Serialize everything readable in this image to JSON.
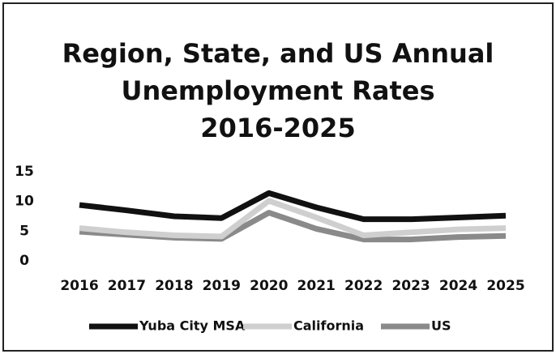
{
  "chart_data": {
    "type": "line",
    "title": [
      "Region, State, and US Annual",
      "Unemployment Rates",
      "2016-2025"
    ],
    "categories": [
      "2016",
      "2017",
      "2018",
      "2019",
      "2020",
      "2021",
      "2022",
      "2023",
      "2024",
      "2025"
    ],
    "series": [
      {
        "name": "Yuba City MSA",
        "color": "#111111",
        "values": [
          9.4,
          8.5,
          7.5,
          7.2,
          11.4,
          9.0,
          7.0,
          7.0,
          7.3,
          7.6
        ]
      },
      {
        "name": "California",
        "color": "#cfcfcf",
        "values": [
          5.5,
          4.8,
          4.3,
          4.1,
          10.1,
          7.3,
          4.3,
          4.8,
          5.3,
          5.5
        ]
      },
      {
        "name": "US",
        "color": "#8a8a8a",
        "values": [
          4.9,
          4.4,
          3.9,
          3.7,
          8.1,
          5.4,
          3.6,
          3.6,
          4.0,
          4.2
        ]
      }
    ],
    "ylim": [
      0,
      15
    ],
    "yticks": [
      0,
      5,
      10,
      15
    ],
    "grid": false,
    "legend": "bottom"
  }
}
